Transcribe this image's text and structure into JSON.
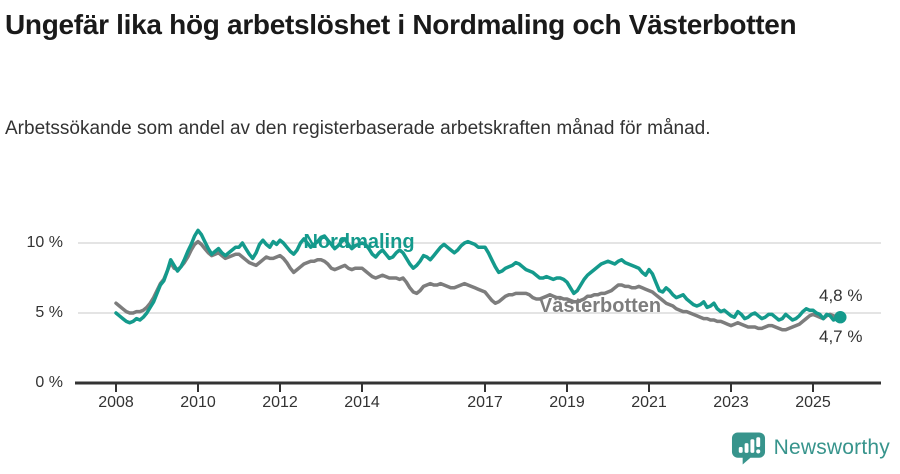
{
  "header": {
    "title": "Ungefär lika hög arbetslöshet i Nordmaling och Västerbotten",
    "subtitle": "Arbetssökande som andel av den registerbaserade arbetskraften månad för månad."
  },
  "chart_data": {
    "type": "line",
    "unit": "%",
    "frequency": "monthly",
    "x_months": {
      "start": "2008-01",
      "end": "2025-09",
      "count": 213
    },
    "ylim": [
      0,
      12
    ],
    "grid": "horizontal-only",
    "legend_position": "inline-on-lines",
    "yticks": [
      {
        "value": 0,
        "label": "0 %"
      },
      {
        "value": 5,
        "label": "5 %"
      },
      {
        "value": 10,
        "label": "10 %"
      }
    ],
    "xticks": [
      2008,
      2010,
      2012,
      2014,
      2017,
      2019,
      2021,
      2023,
      2025
    ],
    "colors": {
      "axis": "#333333",
      "grid": "#dbdbdb"
    },
    "series": [
      {
        "name": "Västerbotten",
        "color": "#7d7d7d",
        "end_label": "4,8 %",
        "end_dot": false,
        "values": [
          5.7,
          5.5,
          5.3,
          5.1,
          5.0,
          5.0,
          5.1,
          5.1,
          5.2,
          5.4,
          5.7,
          6.1,
          6.6,
          7.1,
          7.4,
          8.0,
          8.6,
          8.2,
          8.1,
          8.3,
          8.6,
          9.0,
          9.5,
          9.9,
          10.1,
          9.9,
          9.6,
          9.3,
          9.1,
          9.2,
          9.3,
          9.1,
          8.9,
          9.0,
          9.1,
          9.2,
          9.2,
          9.0,
          8.8,
          8.6,
          8.5,
          8.4,
          8.6,
          8.8,
          9.0,
          8.9,
          8.9,
          9.0,
          9.1,
          8.9,
          8.6,
          8.2,
          7.9,
          8.1,
          8.3,
          8.5,
          8.6,
          8.7,
          8.7,
          8.8,
          8.8,
          8.7,
          8.5,
          8.2,
          8.1,
          8.2,
          8.3,
          8.4,
          8.2,
          8.1,
          8.2,
          8.2,
          8.2,
          8.0,
          7.8,
          7.6,
          7.5,
          7.6,
          7.7,
          7.6,
          7.5,
          7.5,
          7.5,
          7.4,
          7.5,
          7.2,
          6.8,
          6.5,
          6.4,
          6.6,
          6.9,
          7.0,
          7.1,
          7.0,
          7.0,
          7.1,
          7.0,
          6.9,
          6.8,
          6.8,
          6.9,
          7.0,
          7.1,
          7.0,
          6.9,
          6.8,
          6.7,
          6.6,
          6.5,
          6.2,
          5.9,
          5.7,
          5.8,
          6.0,
          6.2,
          6.3,
          6.3,
          6.4,
          6.4,
          6.4,
          6.4,
          6.3,
          6.1,
          6.0,
          6.0,
          6.1,
          6.2,
          6.3,
          6.2,
          6.1,
          6.1,
          6.0,
          6.0,
          5.9,
          5.8,
          5.8,
          5.9,
          6.0,
          6.2,
          6.2,
          6.3,
          6.3,
          6.4,
          6.4,
          6.5,
          6.6,
          6.8,
          7.0,
          7.0,
          6.9,
          6.9,
          6.8,
          6.8,
          6.9,
          6.8,
          6.7,
          6.6,
          6.5,
          6.3,
          6.1,
          5.9,
          5.7,
          5.6,
          5.5,
          5.3,
          5.2,
          5.1,
          5.1,
          5.0,
          4.9,
          4.8,
          4.7,
          4.6,
          4.6,
          4.5,
          4.5,
          4.4,
          4.4,
          4.3,
          4.2,
          4.1,
          4.2,
          4.3,
          4.2,
          4.1,
          4.0,
          4.0,
          4.0,
          3.9,
          3.9,
          4.0,
          4.1,
          4.1,
          4.0,
          3.9,
          3.8,
          3.8,
          3.9,
          4.0,
          4.1,
          4.2,
          4.4,
          4.6,
          4.8,
          4.9,
          4.8,
          4.7,
          4.6,
          4.8,
          4.9,
          4.8,
          4.7,
          4.8
        ]
      },
      {
        "name": "Nordmaling",
        "color": "#149a8c",
        "end_label": "4,7 %",
        "end_dot": true,
        "values": [
          5.0,
          4.8,
          4.6,
          4.4,
          4.3,
          4.4,
          4.6,
          4.5,
          4.7,
          5.0,
          5.4,
          5.8,
          6.4,
          7.0,
          7.3,
          8.0,
          8.8,
          8.4,
          8.0,
          8.3,
          8.8,
          9.4,
          9.9,
          10.5,
          10.9,
          10.6,
          10.1,
          9.6,
          9.2,
          9.4,
          9.6,
          9.3,
          9.1,
          9.3,
          9.5,
          9.7,
          9.7,
          10.0,
          9.6,
          9.2,
          8.9,
          9.3,
          9.9,
          10.2,
          9.9,
          9.7,
          10.1,
          9.9,
          10.2,
          10.0,
          9.7,
          9.4,
          9.2,
          9.5,
          10.0,
          10.3,
          10.0,
          9.7,
          9.9,
          10.1,
          10.4,
          10.5,
          10.2,
          9.9,
          9.6,
          9.8,
          10.1,
          10.3,
          9.9,
          9.6,
          9.8,
          9.9,
          10.0,
          9.9,
          9.6,
          9.2,
          9.0,
          9.3,
          9.5,
          9.2,
          8.9,
          9.0,
          9.3,
          9.5,
          9.3,
          8.9,
          8.5,
          8.2,
          8.4,
          8.7,
          9.1,
          9.0,
          8.8,
          9.1,
          9.4,
          9.7,
          9.9,
          9.7,
          9.5,
          9.3,
          9.5,
          9.8,
          10.0,
          10.1,
          10.0,
          9.9,
          9.7,
          9.7,
          9.7,
          9.3,
          8.8,
          8.3,
          7.9,
          8.0,
          8.2,
          8.3,
          8.4,
          8.6,
          8.5,
          8.3,
          8.1,
          8.0,
          7.9,
          7.7,
          7.5,
          7.5,
          7.6,
          7.5,
          7.4,
          7.5,
          7.5,
          7.4,
          7.2,
          6.8,
          6.4,
          6.6,
          7.0,
          7.4,
          7.7,
          7.9,
          8.1,
          8.3,
          8.5,
          8.6,
          8.7,
          8.6,
          8.5,
          8.7,
          8.8,
          8.6,
          8.5,
          8.4,
          8.3,
          8.2,
          7.9,
          7.7,
          8.1,
          7.8,
          7.2,
          6.6,
          6.5,
          6.8,
          6.6,
          6.3,
          6.1,
          6.2,
          6.3,
          6.0,
          5.8,
          5.6,
          5.5,
          5.6,
          5.8,
          5.4,
          5.5,
          5.7,
          5.3,
          5.1,
          5.2,
          5.0,
          4.8,
          4.7,
          5.1,
          4.9,
          4.6,
          4.7,
          4.9,
          5.0,
          4.8,
          4.6,
          4.7,
          4.9,
          4.9,
          4.7,
          4.5,
          4.6,
          4.9,
          4.7,
          4.5,
          4.6,
          4.8,
          5.1,
          5.3,
          5.2,
          5.2,
          5.0,
          4.9,
          4.6,
          4.9,
          4.8,
          4.5,
          4.6,
          4.7
        ]
      }
    ],
    "inline_labels": [
      {
        "text": "Nordmaling",
        "color": "#149a8c"
      },
      {
        "text": "Västerbotten",
        "color": "#7d7d7d"
      }
    ]
  },
  "footer": {
    "brand": "Newsworthy",
    "logo_color": "#37948c"
  }
}
